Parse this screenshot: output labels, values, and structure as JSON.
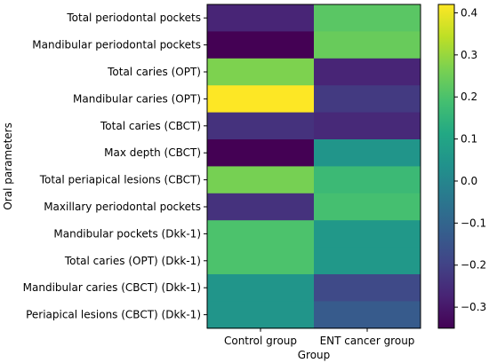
{
  "chart_data": {
    "type": "heatmap",
    "title": "",
    "xlabel": "Group",
    "ylabel": "Oral parameters",
    "columns": [
      "Control group",
      "ENT cancer group"
    ],
    "rows": [
      "Total periodontal pockets",
      "Mandibular periodontal pockets",
      "Total caries (OPT)",
      "Mandibular caries (OPT)",
      "Total caries (CBCT)",
      "Max depth (CBCT)",
      "Total periapical lesions (CBCT)",
      "Maxillary periodontal pockets",
      "Mandibular pockets (Dkk-1)",
      "Total caries (OPT) (Dkk-1)",
      "Mandibular caries (CBCT) (Dkk-1)",
      "Periapical lesions (CBCT) (Dkk-1)"
    ],
    "values": [
      [
        -0.27,
        0.22
      ],
      [
        -0.35,
        0.24
      ],
      [
        0.27,
        -0.27
      ],
      [
        0.42,
        -0.22
      ],
      [
        -0.24,
        -0.26
      ],
      [
        -0.35,
        0.05
      ],
      [
        0.26,
        0.17
      ],
      [
        -0.24,
        0.19
      ],
      [
        0.2,
        0.06
      ],
      [
        0.2,
        0.06
      ],
      [
        0.05,
        -0.18
      ],
      [
        0.05,
        -0.13
      ]
    ],
    "colorbar": {
      "colormap": "viridis",
      "vmin": -0.35,
      "vmax": 0.42,
      "ticks": [
        -0.3,
        -0.2,
        -0.1,
        0.0,
        0.1,
        0.2,
        0.3,
        0.4
      ],
      "tick_labels": [
        "−0.3",
        "−0.2",
        "−0.1",
        "0.0",
        "0.1",
        "0.2",
        "0.3",
        "0.4"
      ]
    },
    "grid": false,
    "legend": "none"
  }
}
